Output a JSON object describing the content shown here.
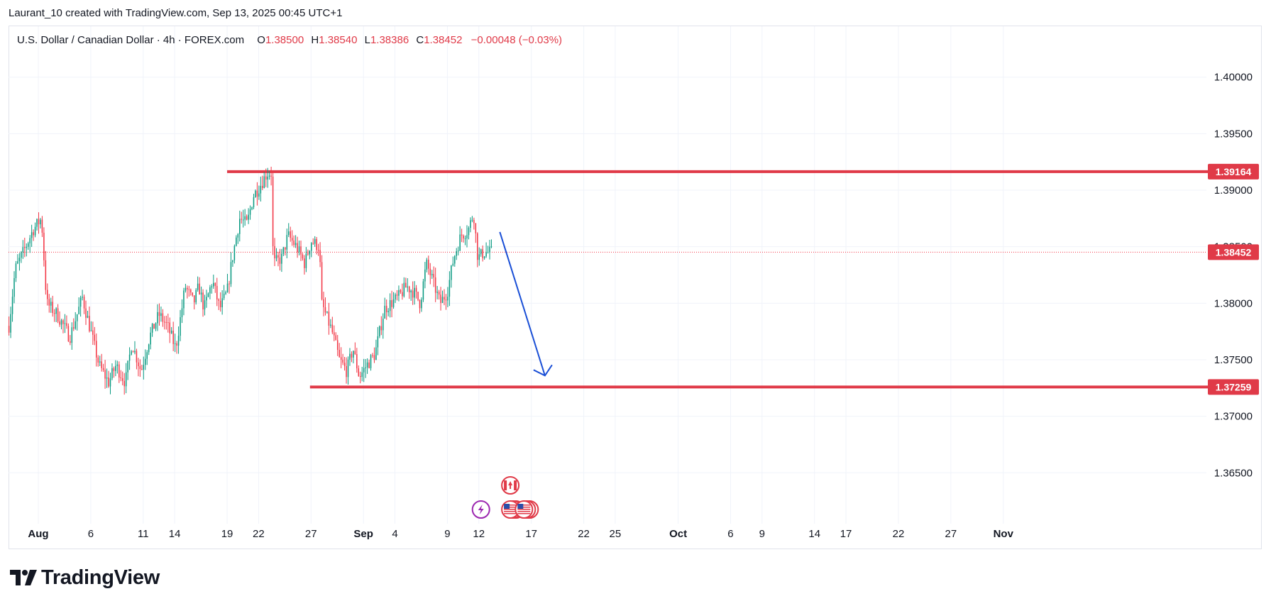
{
  "header": {
    "attribution": "Laurant_10 created with TradingView.com, Sep 13, 2025 00:45 UTC+1"
  },
  "legend": {
    "symbol": "U.S. Dollar / Canadian Dollar · 4h · FOREX.com",
    "open_label": "O",
    "open": "1.38500",
    "high_label": "H",
    "high": "1.38540",
    "low_label": "L",
    "low": "1.38386",
    "close_label": "C",
    "close": "1.38452",
    "change": "−0.00048 (−0.03%)"
  },
  "footer": {
    "brand": "TradingView"
  },
  "colors": {
    "up": "#089981",
    "down": "#f23645",
    "level": "#e03a48",
    "arrow": "#1a4fd6",
    "grid": "#f0f3fa"
  },
  "chart_data": {
    "type": "candlestick",
    "title": "U.S. Dollar / Canadian Dollar · 4h · FOREX.com",
    "y_ticks": [
      "1.40000",
      "1.39500",
      "1.39000",
      "1.38500",
      "1.38000",
      "1.37500",
      "1.37000",
      "1.36500"
    ],
    "y_tick_values": [
      1.4,
      1.395,
      1.39,
      1.385,
      1.38,
      1.375,
      1.37,
      1.365
    ],
    "ylim": [
      1.3605,
      1.4045
    ],
    "x_ticks": [
      {
        "label": "Aug",
        "day": 0,
        "bold": true
      },
      {
        "label": "6",
        "day": 5
      },
      {
        "label": "11",
        "day": 10
      },
      {
        "label": "14",
        "day": 13
      },
      {
        "label": "19",
        "day": 18
      },
      {
        "label": "22",
        "day": 21
      },
      {
        "label": "27",
        "day": 26
      },
      {
        "label": "Sep",
        "day": 31,
        "bold": true
      },
      {
        "label": "4",
        "day": 34
      },
      {
        "label": "9",
        "day": 39
      },
      {
        "label": "12",
        "day": 42
      },
      {
        "label": "17",
        "day": 47
      },
      {
        "label": "22",
        "day": 52
      },
      {
        "label": "25",
        "day": 55
      },
      {
        "label": "Oct",
        "day": 61,
        "bold": true
      },
      {
        "label": "6",
        "day": 66
      },
      {
        "label": "9",
        "day": 69
      },
      {
        "label": "14",
        "day": 74
      },
      {
        "label": "17",
        "day": 77
      },
      {
        "label": "22",
        "day": 82
      },
      {
        "label": "27",
        "day": 87
      },
      {
        "label": "Nov",
        "day": 92,
        "bold": true
      }
    ],
    "price_path": [
      [
        -2.8,
        1.378
      ],
      [
        -2.2,
        1.383
      ],
      [
        -1.2,
        1.385
      ],
      [
        -0.5,
        1.3865
      ],
      [
        0.3,
        1.3875
      ],
      [
        0.8,
        1.38
      ],
      [
        1.8,
        1.379
      ],
      [
        3.0,
        1.377
      ],
      [
        4.2,
        1.3805
      ],
      [
        5.0,
        1.3775
      ],
      [
        5.8,
        1.3745
      ],
      [
        6.7,
        1.373
      ],
      [
        7.4,
        1.3745
      ],
      [
        8.3,
        1.373
      ],
      [
        8.9,
        1.3765
      ],
      [
        9.8,
        1.374
      ],
      [
        10.6,
        1.377
      ],
      [
        11.5,
        1.379
      ],
      [
        12.3,
        1.378
      ],
      [
        13.1,
        1.376
      ],
      [
        13.6,
        1.379
      ],
      [
        14.0,
        1.3815
      ],
      [
        14.8,
        1.38
      ],
      [
        15.3,
        1.3815
      ],
      [
        15.8,
        1.3795
      ],
      [
        16.6,
        1.382
      ],
      [
        17.3,
        1.3795
      ],
      [
        18.0,
        1.381
      ],
      [
        18.5,
        1.384
      ],
      [
        19.2,
        1.3875
      ],
      [
        19.9,
        1.387
      ],
      [
        20.5,
        1.3895
      ],
      [
        21.2,
        1.3905
      ],
      [
        21.8,
        1.3915
      ],
      [
        22.2,
        1.3915
      ],
      [
        22.4,
        1.3835
      ],
      [
        23.2,
        1.384
      ],
      [
        23.8,
        1.386
      ],
      [
        24.6,
        1.385
      ],
      [
        25.4,
        1.3835
      ],
      [
        26.0,
        1.3855
      ],
      [
        26.8,
        1.385
      ],
      [
        27.0,
        1.38
      ],
      [
        28.0,
        1.3775
      ],
      [
        28.7,
        1.375
      ],
      [
        29.4,
        1.374
      ],
      [
        30.0,
        1.376
      ],
      [
        30.6,
        1.3735
      ],
      [
        31.3,
        1.3745
      ],
      [
        32.1,
        1.3755
      ],
      [
        33.0,
        1.3795
      ],
      [
        33.6,
        1.38
      ],
      [
        34.3,
        1.3805
      ],
      [
        35.1,
        1.3815
      ],
      [
        35.8,
        1.381
      ],
      [
        36.4,
        1.38
      ],
      [
        37.0,
        1.3835
      ],
      [
        37.6,
        1.382
      ],
      [
        38.3,
        1.38
      ],
      [
        39.0,
        1.381
      ],
      [
        39.6,
        1.384
      ],
      [
        40.3,
        1.386
      ],
      [
        41.0,
        1.3865
      ],
      [
        41.5,
        1.388
      ],
      [
        41.9,
        1.384
      ],
      [
        42.5,
        1.3845
      ],
      [
        43.3,
        1.3845
      ]
    ],
    "levels": [
      {
        "label": "1.39164",
        "value": 1.39164,
        "from_day": 18.0
      },
      {
        "label": "1.37259",
        "value": 1.37259,
        "from_day": 25.9
      }
    ],
    "last_price": {
      "label": "1.38452",
      "value": 1.38452
    },
    "forecast_arrow": {
      "from": [
        44.0,
        1.3863
      ],
      "to": [
        48.3,
        1.3736
      ]
    },
    "event_markers": [
      {
        "icon": "canada-flag-icon",
        "day": 45.0,
        "row": "upper"
      },
      {
        "icon": "lightning-icon",
        "day": 42.2,
        "row": "lower"
      },
      {
        "icon": "us-flag-icon",
        "day": 45.0,
        "row": "lower"
      },
      {
        "icon": "us-flag-icon",
        "day": 46.3,
        "row": "lower"
      }
    ]
  }
}
